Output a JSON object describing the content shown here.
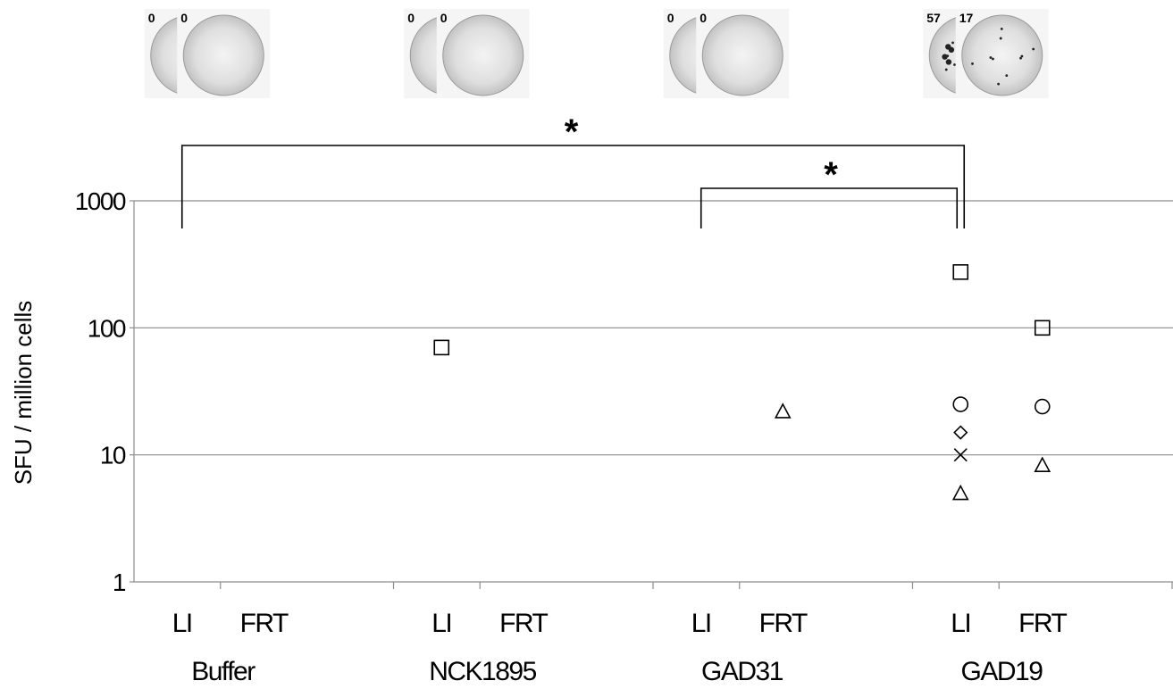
{
  "chart_data": {
    "type": "scatter",
    "ylabel": "SFU / million cells",
    "yscale": "log",
    "ylim": [
      1,
      1000
    ],
    "ytick_labels": [
      "1",
      "10",
      "100",
      "1000"
    ],
    "grid": true,
    "groups": [
      "Buffer",
      "NCK1895",
      "GAD31",
      "GAD19"
    ],
    "categories": [
      "LI",
      "FRT",
      "LI",
      "FRT",
      "LI",
      "FRT",
      "LI",
      "FRT"
    ],
    "points": [
      {
        "category_index": 2,
        "group": "NCK1895",
        "tissue": "LI",
        "marker": "square",
        "y": 70
      },
      {
        "category_index": 5,
        "group": "GAD31",
        "tissue": "FRT",
        "marker": "triangle",
        "y": 22
      },
      {
        "category_index": 6,
        "group": "GAD19",
        "tissue": "LI",
        "marker": "square",
        "y": 275
      },
      {
        "category_index": 6,
        "group": "GAD19",
        "tissue": "LI",
        "marker": "circle",
        "y": 25
      },
      {
        "category_index": 6,
        "group": "GAD19",
        "tissue": "LI",
        "marker": "diamond",
        "y": 15
      },
      {
        "category_index": 6,
        "group": "GAD19",
        "tissue": "LI",
        "marker": "cross",
        "y": 10
      },
      {
        "category_index": 6,
        "group": "GAD19",
        "tissue": "LI",
        "marker": "triangle",
        "y": 5
      },
      {
        "category_index": 7,
        "group": "GAD19",
        "tissue": "FRT",
        "marker": "square",
        "y": 100
      },
      {
        "category_index": 7,
        "group": "GAD19",
        "tissue": "FRT",
        "marker": "circle",
        "y": 24
      },
      {
        "category_index": 7,
        "group": "GAD19",
        "tissue": "FRT",
        "marker": "triangle",
        "y": 8.3
      }
    ],
    "significance": [
      {
        "from_category": 0,
        "to_category": 6,
        "label": "*"
      },
      {
        "from_category": 4,
        "to_category": 6,
        "label": "*"
      }
    ],
    "well_images": [
      {
        "category_index": 0,
        "count_label": "0",
        "spots": 0
      },
      {
        "category_index": 1,
        "count_label": "0",
        "spots": 0
      },
      {
        "category_index": 2,
        "count_label": "0",
        "spots": 0
      },
      {
        "category_index": 3,
        "count_label": "0",
        "spots": 0
      },
      {
        "category_index": 4,
        "count_label": "0",
        "spots": 0
      },
      {
        "category_index": 5,
        "count_label": "0",
        "spots": 0
      },
      {
        "category_index": 6,
        "count_label": "57",
        "spots": 24
      },
      {
        "category_index": 7,
        "count_label": "17",
        "spots": 10
      }
    ]
  }
}
